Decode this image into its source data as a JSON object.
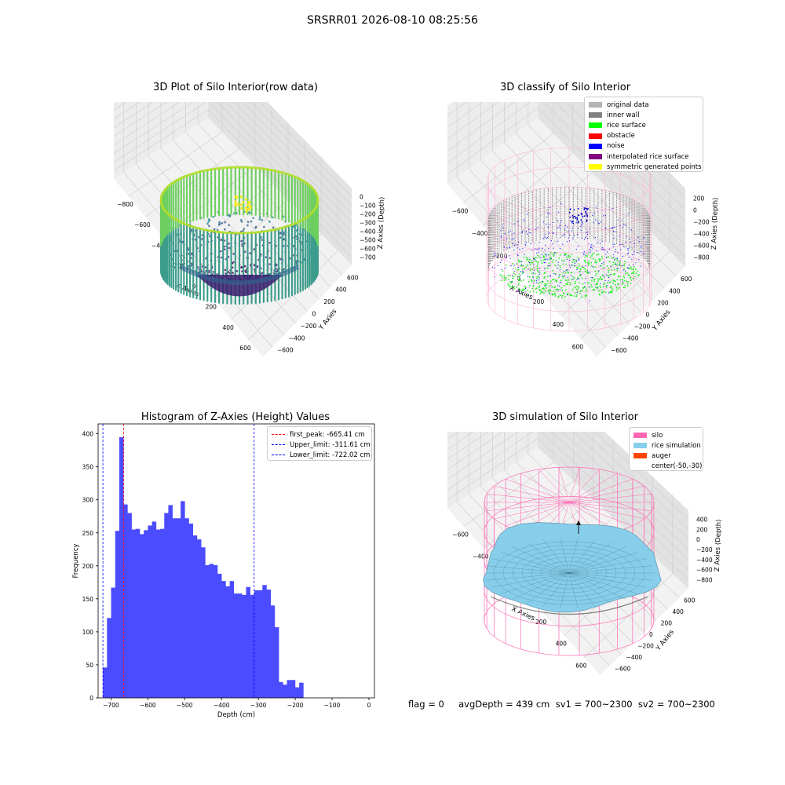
{
  "suptitle": "SRSRR01 2026-08-10 08:25:56",
  "footer": "flag = 0     avgDepth = 439 cm  sv1 = 700~2300  sv2 = 700~2300",
  "chart_data": [
    {
      "type": "scatter",
      "title": "3D Plot of Silo Interior(row data)",
      "xlabel": "X Axies",
      "ylabel": "Y Axies",
      "zlabel": "Z Axies (Depth)",
      "xticks": [
        "−800",
        "−600",
        "−400",
        "−200",
        "0",
        "200",
        "400",
        "600"
      ],
      "yticks": [
        "−600",
        "−400",
        "−200",
        "0",
        "200",
        "400",
        "600"
      ],
      "zticks": [
        "0",
        "−100",
        "−200",
        "−300",
        "−400",
        "−500",
        "−600",
        "−700"
      ],
      "xlim": [
        -800,
        600
      ],
      "ylim": [
        -600,
        600
      ],
      "zlim": [
        -720,
        0
      ],
      "colormap": "viridis"
    },
    {
      "type": "scatter",
      "title": "3D classify of Silo Interior",
      "xlabel": "X Axies",
      "ylabel": "Y Axies",
      "zlabel": "Z Axies (Depth)",
      "xticks": [
        "−600",
        "−400",
        "−200",
        "0",
        "200",
        "400",
        "600"
      ],
      "yticks": [
        "−600",
        "−400",
        "−200",
        "0",
        "200",
        "400",
        "600"
      ],
      "zticks": [
        "200",
        "0",
        "−200",
        "−400",
        "−600",
        "−800"
      ],
      "xlim": [
        -600,
        600
      ],
      "ylim": [
        -600,
        600
      ],
      "zlim": [
        -800,
        200
      ],
      "legend": [
        {
          "label": "original data",
          "color": "#b3b3b3"
        },
        {
          "label": "inner wall",
          "color": "#808080"
        },
        {
          "label": "rice surface",
          "color": "#00ff00"
        },
        {
          "label": "obstacle",
          "color": "#ff0000"
        },
        {
          "label": "noise",
          "color": "#0000ff"
        },
        {
          "label": "interpolated rice surface",
          "color": "#800080"
        },
        {
          "label": "symmetric generated points",
          "color": "#ffff00"
        }
      ],
      "extra_tick": "00"
    },
    {
      "type": "bar",
      "title": "Histogram of Z-Axies (Height) Values",
      "xlabel": "Depth (cm)",
      "ylabel": "Frequency",
      "xlim": [
        -735,
        15
      ],
      "ylim": [
        0,
        415
      ],
      "xticks": [
        -700,
        -600,
        -500,
        -400,
        -300,
        -200,
        -100,
        0
      ],
      "yticks": [
        0,
        50,
        100,
        150,
        200,
        250,
        300,
        350,
        400
      ],
      "bin_start": -722,
      "bin_width": 11.1,
      "values": [
        46,
        121,
        167,
        253,
        395,
        293,
        280,
        255,
        256,
        248,
        254,
        261,
        267,
        255,
        256,
        280,
        292,
        272,
        272,
        298,
        272,
        264,
        246,
        240,
        228,
        201,
        203,
        201,
        188,
        177,
        169,
        177,
        158,
        158,
        156,
        168,
        156,
        163,
        163,
        171,
        164,
        140,
        107,
        24,
        20,
        27,
        27,
        16,
        23
      ],
      "bar_color": "#4b4bff",
      "lines": [
        {
          "label": "first_peak: -665.41 cm",
          "x": -665.41,
          "color": "#ff0000"
        },
        {
          "label": "Upper_limit: -311.61 cm",
          "x": -311.61,
          "color": "#0000ff"
        },
        {
          "label": "Lower_limit: -722.02 cm",
          "x": -722.02,
          "color": "#0000ff"
        }
      ]
    },
    {
      "type": "surface",
      "title": "3D simulation of Silo Interior",
      "xlabel": "X Axies",
      "ylabel": "Y Axies",
      "zlabel": "Z Axies (Depth)",
      "xticks": [
        "−600",
        "−400",
        "−200",
        "0",
        "200",
        "400",
        "600"
      ],
      "yticks": [
        "−600",
        "−400",
        "−200",
        "0",
        "200",
        "400",
        "600"
      ],
      "zticks": [
        "400",
        "200",
        "0",
        "−200",
        "−400",
        "−600",
        "−800"
      ],
      "legend": [
        {
          "label": "silo",
          "color": "#ff69b4"
        },
        {
          "label": "rice simulation",
          "color": "#87ceeb"
        },
        {
          "label": "auger",
          "color": "#ff4500"
        },
        {
          "label": "center(-50,-30)",
          "color": ""
        }
      ]
    }
  ]
}
